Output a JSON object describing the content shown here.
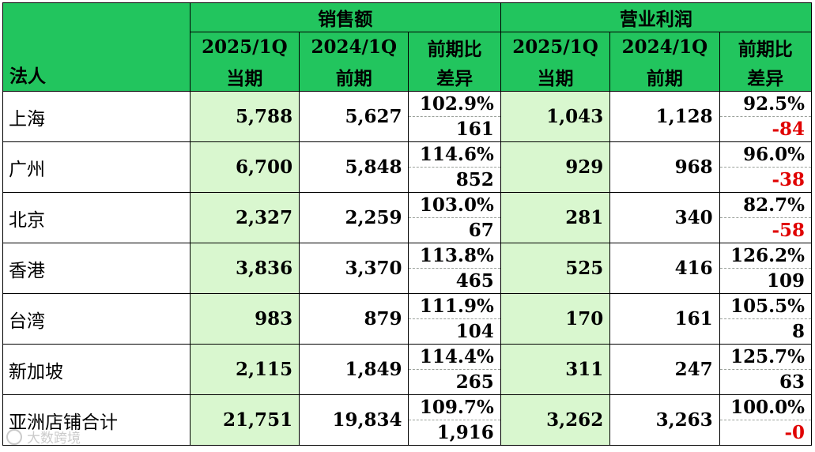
{
  "header": {
    "group_sales": "销售额",
    "group_profit": "营业利润",
    "entity_label": "法人",
    "col_current_period": "2025/1Q",
    "col_prior_period": "2024/1Q",
    "col_compare_top": "前期比",
    "label_current": "当期",
    "label_prior": "前期",
    "label_diff": "差异"
  },
  "rows": [
    {
      "name": "上海",
      "sales_cur": "5,788",
      "sales_prev": "5,627",
      "sales_ratio": "102.9%",
      "sales_diff": "161",
      "profit_cur": "1,043",
      "profit_prev": "1,128",
      "profit_ratio": "92.5%",
      "profit_diff": "-84"
    },
    {
      "name": "广州",
      "sales_cur": "6,700",
      "sales_prev": "5,848",
      "sales_ratio": "114.6%",
      "sales_diff": "852",
      "profit_cur": "929",
      "profit_prev": "968",
      "profit_ratio": "96.0%",
      "profit_diff": "-38"
    },
    {
      "name": "北京",
      "sales_cur": "2,327",
      "sales_prev": "2,259",
      "sales_ratio": "103.0%",
      "sales_diff": "67",
      "profit_cur": "281",
      "profit_prev": "340",
      "profit_ratio": "82.7%",
      "profit_diff": "-58"
    },
    {
      "name": "香港",
      "sales_cur": "3,836",
      "sales_prev": "3,370",
      "sales_ratio": "113.8%",
      "sales_diff": "465",
      "profit_cur": "525",
      "profit_prev": "416",
      "profit_ratio": "126.2%",
      "profit_diff": "109"
    },
    {
      "name": "台湾",
      "sales_cur": "983",
      "sales_prev": "879",
      "sales_ratio": "111.9%",
      "sales_diff": "104",
      "profit_cur": "170",
      "profit_prev": "161",
      "profit_ratio": "105.5%",
      "profit_diff": "8"
    },
    {
      "name": "新加坡",
      "sales_cur": "2,115",
      "sales_prev": "1,849",
      "sales_ratio": "114.4%",
      "sales_diff": "265",
      "profit_cur": "311",
      "profit_prev": "247",
      "profit_ratio": "125.7%",
      "profit_diff": "63"
    },
    {
      "name": "亚洲店铺合计",
      "sales_cur": "21,751",
      "sales_prev": "19,834",
      "sales_ratio": "109.7%",
      "sales_diff": "1,916",
      "profit_cur": "3,262",
      "profit_prev": "3,263",
      "profit_ratio": "100.0%",
      "profit_diff": "-0"
    }
  ],
  "colors": {
    "header_green": "#22c55e",
    "current_col_bg": "#d9f7cf",
    "negative_red": "#e00000"
  },
  "watermark": {
    "text": "大数跨境",
    "icon": "watermark-logo-icon"
  }
}
